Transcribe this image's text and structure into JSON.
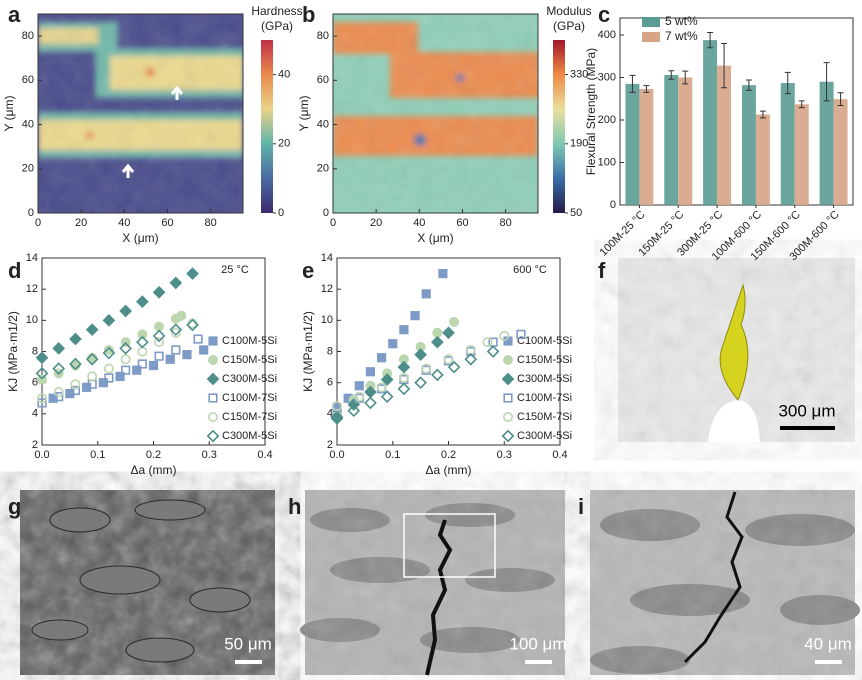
{
  "panel_labels": [
    "a",
    "b",
    "c",
    "d",
    "e",
    "f",
    "g",
    "h",
    "i"
  ],
  "micrographs": [
    {
      "scale_bar": "300 μm"
    },
    {
      "scale_bar": "50 μm"
    },
    {
      "scale_bar": "100 μm"
    },
    {
      "scale_bar": "40 μm"
    }
  ],
  "chart_data": [
    {
      "type": "heatmap",
      "xlabel": "X (μm)",
      "ylabel": "Y (μm)",
      "xlim": [
        0,
        95
      ],
      "ylim": [
        0,
        90
      ],
      "xticks": [
        0,
        20,
        40,
        60,
        80
      ],
      "yticks": [
        0,
        20,
        40,
        60,
        80
      ],
      "colorbar": {
        "label": [
          "Hardness",
          "(GPa)"
        ],
        "lim": [
          0,
          50
        ],
        "ticks": [
          0,
          20,
          40
        ],
        "colors": [
          "#3d2a6e",
          "#4a6aa0",
          "#5fb3a8",
          "#e9d38a",
          "#e98a4c",
          "#c0304a"
        ]
      }
    },
    {
      "type": "heatmap",
      "xlabel": "X (μm)",
      "ylabel": "Y (μm)",
      "xlim": [
        0,
        95
      ],
      "ylim": [
        0,
        90
      ],
      "xticks": [
        0,
        20,
        40,
        60,
        80
      ],
      "yticks": [
        0,
        20,
        40,
        60,
        80
      ],
      "colorbar": {
        "label": [
          "Modulus",
          "(GPa)"
        ],
        "lim": [
          50,
          400
        ],
        "ticks": [
          50,
          190,
          330
        ],
        "colors": [
          "#241a4a",
          "#3b6ea8",
          "#7ec9b5",
          "#eadf9c",
          "#ee8a45",
          "#a3162a"
        ]
      }
    },
    {
      "type": "bar",
      "ylabel": "Flexural Strength (MPa)",
      "categories": [
        "100M-25 °C",
        "150M-25 °C",
        "300M-25 °C",
        "100M-600 °C",
        "150M-600 °C",
        "300M-600 °C"
      ],
      "series": [
        {
          "name": "5 wt%",
          "color": "#5a9c94",
          "values": [
            285,
            306,
            388,
            282,
            287,
            290
          ],
          "errors": [
            20,
            10,
            18,
            12,
            25,
            45
          ]
        },
        {
          "name": "7 wt%",
          "color": "#d6a486",
          "values": [
            273,
            300,
            328,
            213,
            237,
            249
          ],
          "errors": [
            8,
            15,
            52,
            8,
            8,
            15
          ]
        }
      ],
      "ylim": [
        0,
        440
      ],
      "yticks": [
        0,
        100,
        200,
        300,
        400
      ]
    },
    {
      "type": "scatter",
      "annotation": "25 °C",
      "xlabel": "Δa (mm)",
      "ylabel": "KJ (MPa·m1/2)",
      "xlim": [
        0,
        0.4
      ],
      "ylim": [
        2,
        14
      ],
      "xticks": [
        {
          "value": 0,
          "label": "0.0"
        },
        0.1,
        0.2,
        0.3,
        0.4
      ],
      "yticks": [
        2,
        4,
        6,
        8,
        10,
        12,
        14
      ],
      "series": [
        {
          "name": "C100M-5Si",
          "color": "#7e9bc8",
          "marker": "square",
          "filled": true,
          "x": [
            0.02,
            0.05,
            0.08,
            0.11,
            0.14,
            0.17,
            0.2,
            0.23,
            0.26,
            0.29
          ],
          "values": [
            5.0,
            5.3,
            5.7,
            6.0,
            6.4,
            6.8,
            7.1,
            7.5,
            7.8,
            8.1
          ]
        },
        {
          "name": "C150M-5Si",
          "color": "#bcd6b0",
          "marker": "circle",
          "filled": true,
          "x": [
            0,
            0.03,
            0.06,
            0.09,
            0.12,
            0.15,
            0.18,
            0.21,
            0.24,
            0.25
          ],
          "values": [
            6.2,
            6.6,
            7.1,
            7.6,
            8.1,
            8.6,
            9.1,
            9.6,
            10.1,
            10.3
          ]
        },
        {
          "name": "C300M-5Si",
          "color": "#4d8e8a",
          "marker": "diamond",
          "filled": true,
          "x": [
            0,
            0.03,
            0.06,
            0.09,
            0.12,
            0.15,
            0.18,
            0.21,
            0.24,
            0.27
          ],
          "values": [
            7.6,
            8.2,
            8.8,
            9.4,
            10.0,
            10.6,
            11.2,
            11.8,
            12.4,
            13.0
          ]
        },
        {
          "name": "C100M-7Si",
          "color": "#7e9bc8",
          "marker": "square",
          "filled": false,
          "x": [
            0,
            0.03,
            0.06,
            0.09,
            0.12,
            0.15,
            0.18,
            0.21,
            0.24,
            0.28
          ],
          "values": [
            4.7,
            5.1,
            5.5,
            5.9,
            6.3,
            6.8,
            7.2,
            7.7,
            8.1,
            8.8
          ]
        },
        {
          "name": "C150M-7Si",
          "color": "#bcd6b0",
          "marker": "circle",
          "filled": false,
          "x": [
            0,
            0.03,
            0.06,
            0.09,
            0.12,
            0.15,
            0.18,
            0.21,
            0.24,
            0.27
          ],
          "values": [
            5.0,
            5.4,
            5.9,
            6.4,
            6.9,
            7.5,
            8.0,
            8.6,
            9.2,
            9.8
          ]
        },
        {
          "name": "C300M-5Si",
          "color": "#4d8e8a",
          "marker": "diamond",
          "filled": false,
          "x": [
            0,
            0.03,
            0.06,
            0.09,
            0.12,
            0.15,
            0.18,
            0.21,
            0.24,
            0.27
          ],
          "values": [
            6.6,
            6.9,
            7.2,
            7.5,
            7.9,
            8.2,
            8.6,
            9.0,
            9.4,
            9.7
          ]
        }
      ]
    },
    {
      "type": "scatter",
      "annotation": "600 °C",
      "xlabel": "Δa (mm)",
      "ylabel": "KJ (MPa·m1/2)",
      "xlim": [
        0,
        0.4
      ],
      "ylim": [
        2,
        14
      ],
      "xticks": [
        {
          "value": 0,
          "label": "0.0"
        },
        0.1,
        0.2,
        0.3,
        0.4
      ],
      "yticks": [
        2,
        4,
        6,
        8,
        10,
        12,
        14
      ],
      "series": [
        {
          "name": "C100M-5Si",
          "color": "#7e9bc8",
          "marker": "square",
          "filled": true,
          "x": [
            0,
            0.02,
            0.04,
            0.06,
            0.08,
            0.1,
            0.12,
            0.14,
            0.16,
            0.19
          ],
          "values": [
            4.3,
            5.0,
            5.8,
            6.7,
            7.6,
            8.5,
            9.4,
            10.3,
            11.7,
            13.0
          ]
        },
        {
          "name": "C150M-5Si",
          "color": "#bcd6b0",
          "marker": "circle",
          "filled": true,
          "x": [
            0,
            0.03,
            0.06,
            0.09,
            0.12,
            0.15,
            0.18,
            0.21
          ],
          "values": [
            4.0,
            4.9,
            5.8,
            6.6,
            7.5,
            8.3,
            9.2,
            9.9
          ]
        },
        {
          "name": "C300M-5Si",
          "color": "#4d8e8a",
          "marker": "diamond",
          "filled": true,
          "x": [
            0,
            0.03,
            0.06,
            0.09,
            0.12,
            0.15,
            0.18,
            0.2
          ],
          "values": [
            3.8,
            4.6,
            5.4,
            6.2,
            7.0,
            7.8,
            8.6,
            9.2
          ]
        },
        {
          "name": "C100M-7Si",
          "color": "#7e9bc8",
          "marker": "square",
          "filled": false,
          "x": [
            0,
            0.04,
            0.08,
            0.12,
            0.16,
            0.2,
            0.24,
            0.28,
            0.33
          ],
          "values": [
            4.4,
            5.0,
            5.6,
            6.2,
            6.8,
            7.4,
            8.0,
            8.6,
            9.1
          ]
        },
        {
          "name": "C150M-7Si",
          "color": "#bcd6b0",
          "marker": "circle",
          "filled": false,
          "x": [
            0,
            0.04,
            0.08,
            0.12,
            0.16,
            0.2,
            0.24,
            0.27,
            0.3
          ],
          "values": [
            4.5,
            5.1,
            5.7,
            6.3,
            6.9,
            7.5,
            8.1,
            8.6,
            9.0
          ]
        },
        {
          "name": "C300M-5Si",
          "color": "#4d8e8a",
          "marker": "diamond",
          "filled": false,
          "x": [
            0,
            0.03,
            0.06,
            0.09,
            0.12,
            0.15,
            0.18,
            0.21,
            0.24,
            0.28
          ],
          "values": [
            3.7,
            4.2,
            4.7,
            5.1,
            5.6,
            6.0,
            6.5,
            7.0,
            7.5,
            8.0
          ]
        }
      ]
    }
  ]
}
